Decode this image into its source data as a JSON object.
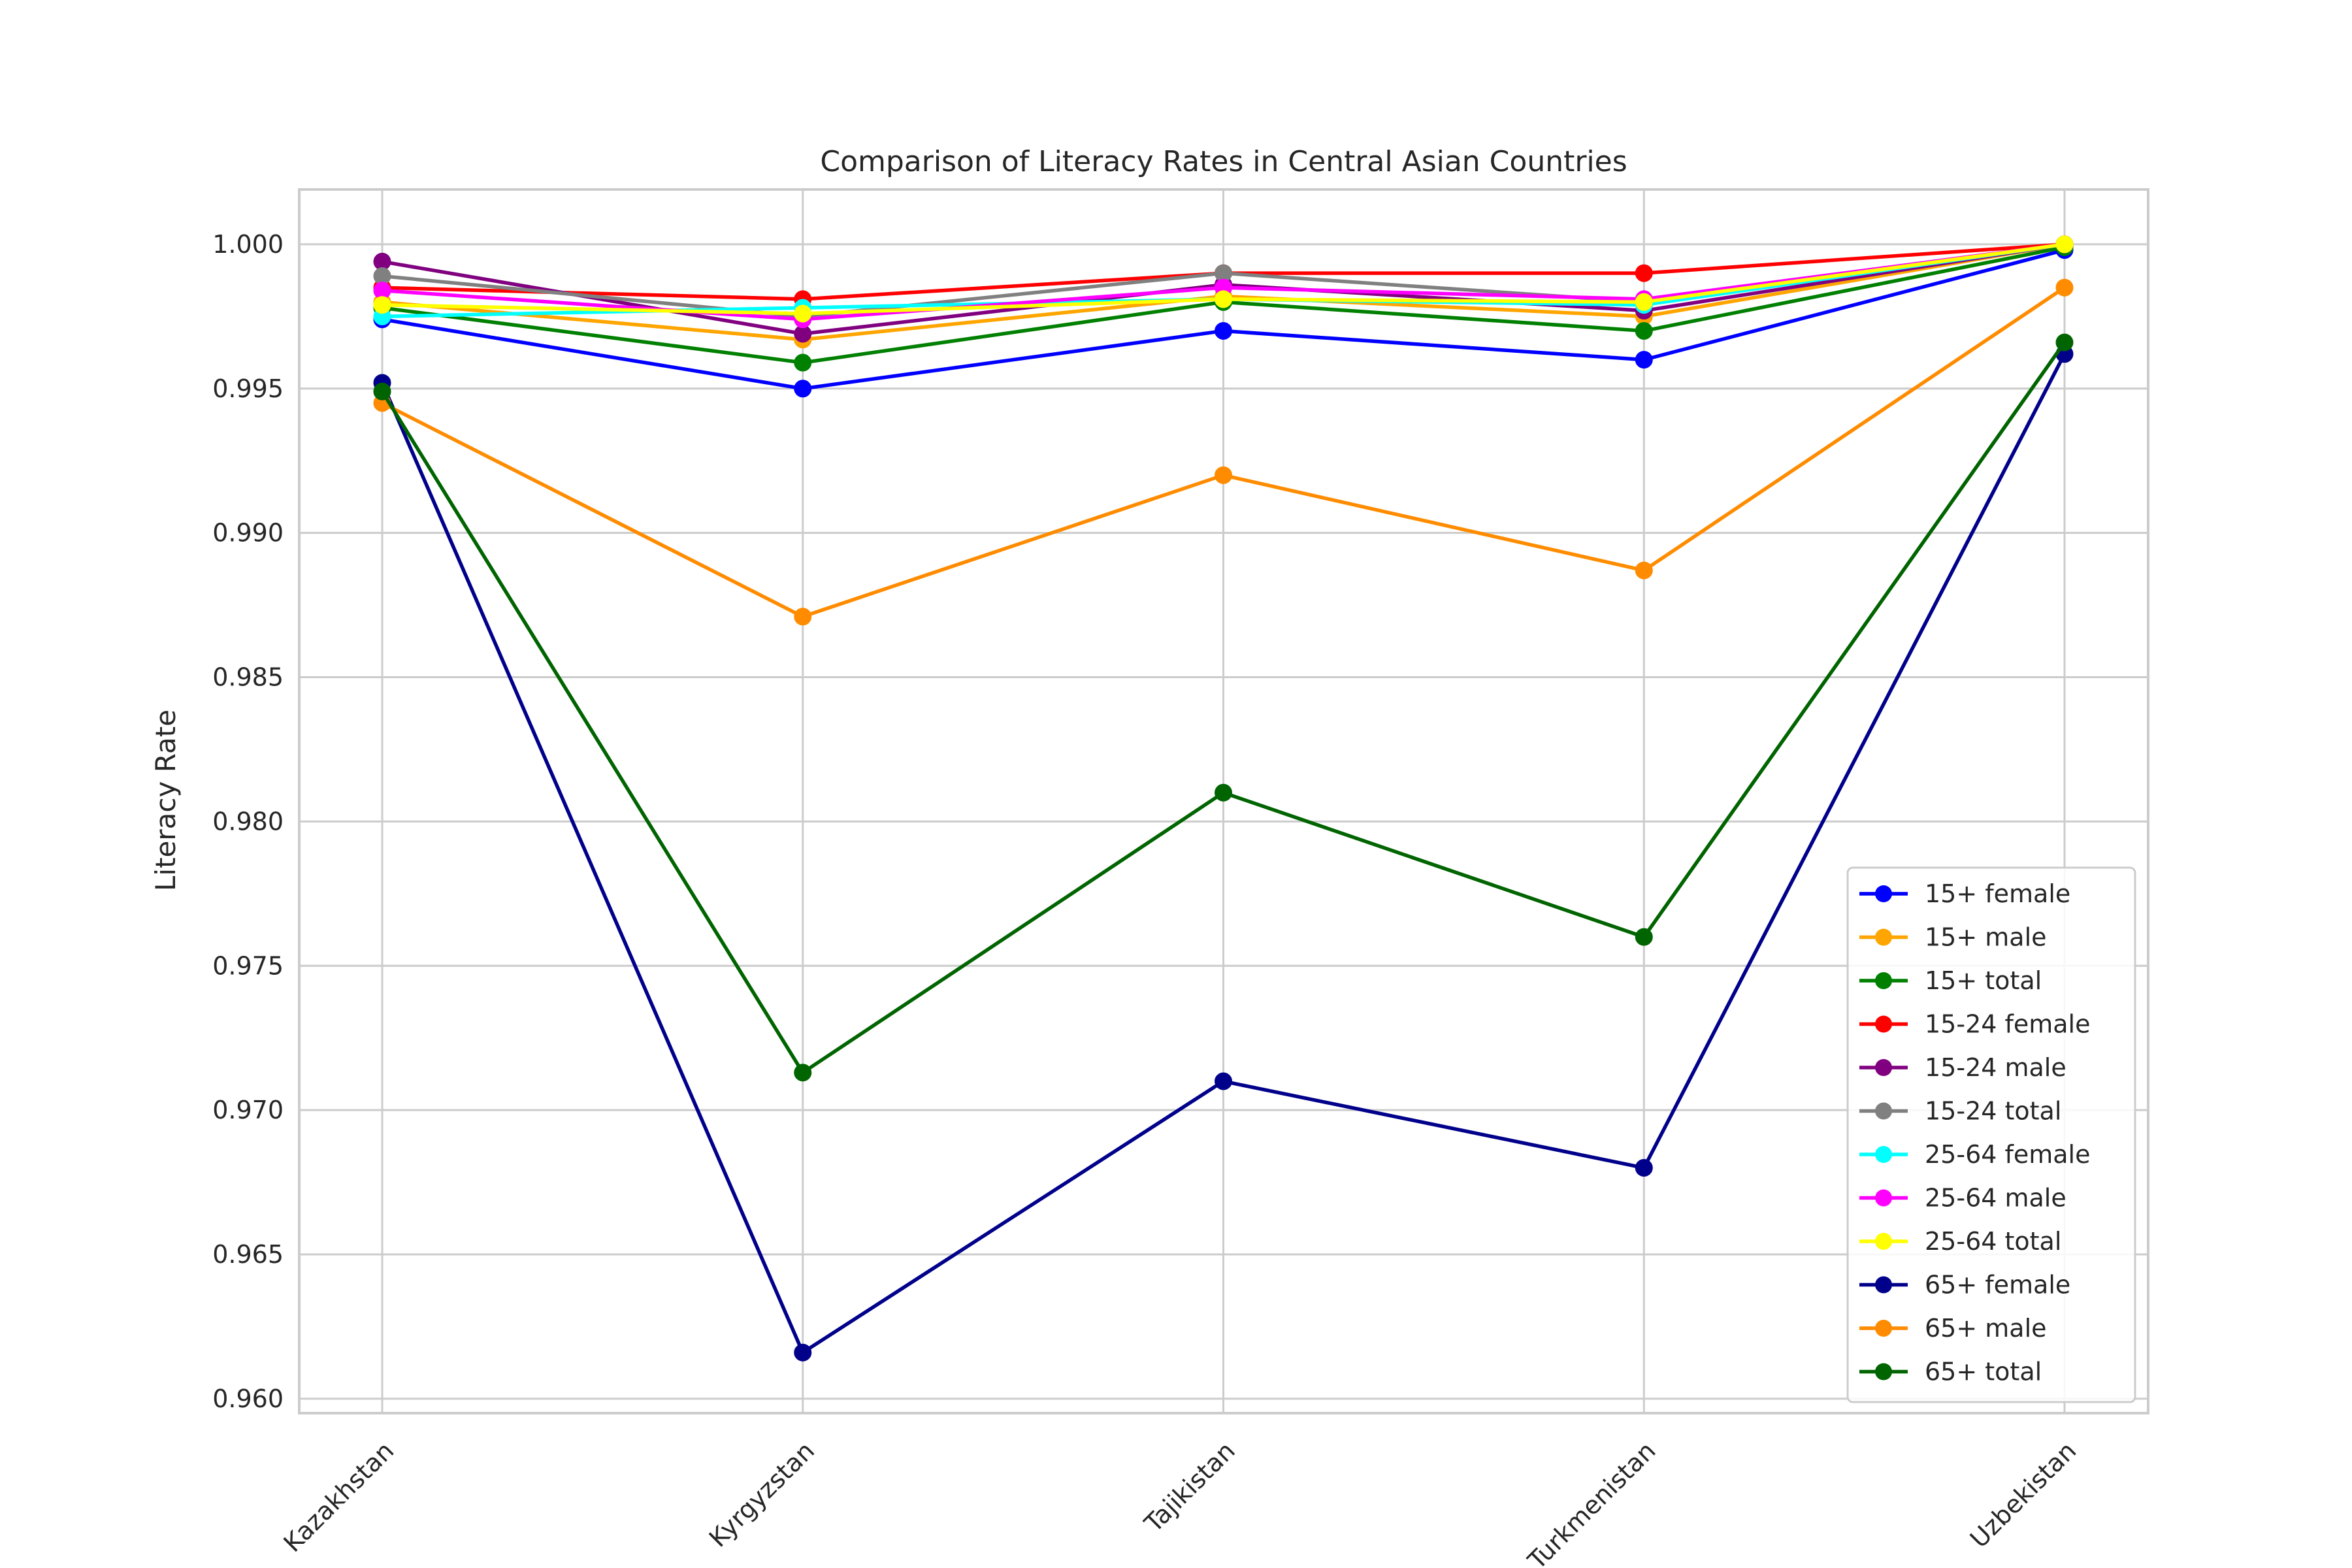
{
  "chart_data": {
    "type": "line",
    "title": "Comparison of Literacy Rates in Central Asian Countries",
    "xlabel": "",
    "ylabel": "Literacy Rate",
    "categories": [
      "Kazakhstan",
      "Kyrgyzstan",
      "Tajikistan",
      "Turkmenistan",
      "Uzbekistan"
    ],
    "ylim": [
      0.9595,
      1.0019
    ],
    "yticks": [
      0.96,
      0.965,
      0.97,
      0.975,
      0.98,
      0.985,
      0.99,
      0.995,
      1.0
    ],
    "ytick_labels": [
      "0.960",
      "0.965",
      "0.970",
      "0.975",
      "0.980",
      "0.985",
      "0.990",
      "0.995",
      "1.000"
    ],
    "grid": true,
    "legend_position": "lower-right",
    "series": [
      {
        "name": "15+ female",
        "color": "#0000ff",
        "values": [
          0.9974,
          0.995,
          0.997,
          0.996,
          0.9998
        ]
      },
      {
        "name": "15+ male",
        "color": "#ffa500",
        "values": [
          0.998,
          0.9967,
          0.9982,
          0.9975,
          1.0
        ]
      },
      {
        "name": "15+ total",
        "color": "#008000",
        "values": [
          0.9978,
          0.9959,
          0.998,
          0.997,
          0.9999
        ]
      },
      {
        "name": "15-24 female",
        "color": "#ff0000",
        "values": [
          0.9985,
          0.9981,
          0.999,
          0.999,
          1.0
        ]
      },
      {
        "name": "15-24 male",
        "color": "#800080",
        "values": [
          0.9994,
          0.9969,
          0.9986,
          0.9977,
          1.0
        ]
      },
      {
        "name": "15-24 total",
        "color": "#808080",
        "values": [
          0.9989,
          0.9975,
          0.999,
          0.998,
          1.0
        ]
      },
      {
        "name": "25-64 female",
        "color": "#00ffff",
        "values": [
          0.9975,
          0.9978,
          0.9981,
          0.9979,
          1.0
        ]
      },
      {
        "name": "25-64 male",
        "color": "#ff00ff",
        "values": [
          0.9984,
          0.9974,
          0.9985,
          0.9981,
          1.0
        ]
      },
      {
        "name": "25-64 total",
        "color": "#ffff00",
        "values": [
          0.9979,
          0.9976,
          0.9981,
          0.998,
          1.0
        ]
      },
      {
        "name": "65+ female",
        "color": "#00008b",
        "values": [
          0.9952,
          0.9616,
          0.971,
          0.968,
          0.9962
        ]
      },
      {
        "name": "65+ male",
        "color": "#ff8c00",
        "values": [
          0.9945,
          0.9871,
          0.992,
          0.9887,
          0.9985
        ]
      },
      {
        "name": "65+ total",
        "color": "#006400",
        "values": [
          0.9949,
          0.9713,
          0.981,
          0.976,
          0.9966
        ]
      }
    ]
  }
}
